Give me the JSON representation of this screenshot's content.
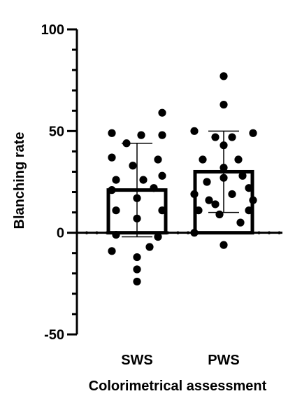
{
  "chart_data": {
    "type": "bar",
    "xlabel": "Colorimetrical assessment",
    "ylabel": "Blanching rate",
    "ylim": [
      -50,
      100
    ],
    "yticks": [
      {
        "value": 100,
        "label": "100"
      },
      {
        "value": 50,
        "label": "50"
      },
      {
        "value": 0,
        "label": "0"
      },
      {
        "value": -50,
        "label": "-50"
      }
    ],
    "minor_tick_step": 10,
    "grid": false,
    "colors": {
      "bar_fill": "#ffffff",
      "bar_stroke": "#000000",
      "point": "#000000",
      "axis": "#000000"
    },
    "categories": [
      "SWS",
      "PWS"
    ],
    "series": [
      {
        "category": "SWS",
        "mean": 21,
        "sd": 23,
        "points": [
          {
            "x": 0.12,
            "y": 59
          },
          {
            "x": -0.12,
            "y": 49
          },
          {
            "x": 0.02,
            "y": 48
          },
          {
            "x": 0.12,
            "y": 48
          },
          {
            "x": -0.05,
            "y": 44
          },
          {
            "x": -0.12,
            "y": 37
          },
          {
            "x": 0.1,
            "y": 36
          },
          {
            "x": -0.02,
            "y": 33
          },
          {
            "x": 0.12,
            "y": 28
          },
          {
            "x": -0.1,
            "y": 26
          },
          {
            "x": 0.03,
            "y": 26
          },
          {
            "x": 0.08,
            "y": 22
          },
          {
            "x": -0.12,
            "y": 21
          },
          {
            "x": 0.0,
            "y": 17
          },
          {
            "x": -0.1,
            "y": 11
          },
          {
            "x": 0.12,
            "y": 11
          },
          {
            "x": 0.0,
            "y": 7
          },
          {
            "x": -0.1,
            "y": -1
          },
          {
            "x": 0.1,
            "y": -2
          },
          {
            "x": -0.12,
            "y": -9
          },
          {
            "x": 0.06,
            "y": -7
          },
          {
            "x": 0.0,
            "y": -12
          },
          {
            "x": 0.0,
            "y": -18
          },
          {
            "x": 0.0,
            "y": -24
          }
        ]
      },
      {
        "category": "PWS",
        "mean": 30,
        "sd": 20,
        "points": [
          {
            "x": 0.0,
            "y": 77
          },
          {
            "x": 0.0,
            "y": 63
          },
          {
            "x": -0.14,
            "y": 50
          },
          {
            "x": 0.14,
            "y": 49
          },
          {
            "x": -0.04,
            "y": 47
          },
          {
            "x": 0.04,
            "y": 47
          },
          {
            "x": 0.0,
            "y": 43
          },
          {
            "x": -0.1,
            "y": 36
          },
          {
            "x": 0.07,
            "y": 36
          },
          {
            "x": 0.0,
            "y": 32
          },
          {
            "x": 0.09,
            "y": 28
          },
          {
            "x": 0.0,
            "y": 27
          },
          {
            "x": -0.08,
            "y": 25
          },
          {
            "x": 0.12,
            "y": 22
          },
          {
            "x": -0.14,
            "y": 19
          },
          {
            "x": 0.04,
            "y": 19
          },
          {
            "x": -0.07,
            "y": 16
          },
          {
            "x": 0.14,
            "y": 16
          },
          {
            "x": -0.04,
            "y": 14
          },
          {
            "x": -0.12,
            "y": 11
          },
          {
            "x": 0.12,
            "y": 11
          },
          {
            "x": -0.02,
            "y": 9
          },
          {
            "x": 0.08,
            "y": 5
          },
          {
            "x": -0.14,
            "y": 0
          },
          {
            "x": 0.0,
            "y": -6
          }
        ]
      }
    ]
  }
}
